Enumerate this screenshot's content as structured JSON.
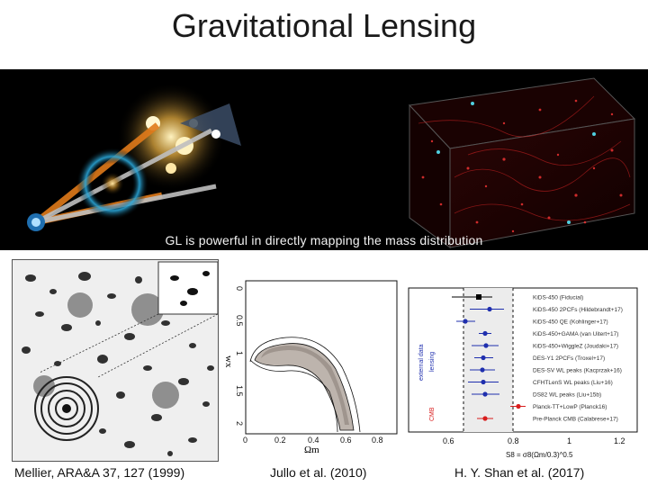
{
  "slide": {
    "title": "Gravitational Lensing",
    "banner_caption": "GL is powerful in directly mapping the mass distribution"
  },
  "panels": {
    "left_credit": "Mellier, ARA&A 37, 127 (1999)",
    "middle_credit": "Jullo et al. (2010)",
    "right_credit": "H. Y. Shan et al. (2017)"
  },
  "contour_plot": {
    "xlabel": "Ωm",
    "ylabel": "wx",
    "x_ticks": [
      "0",
      "0.2",
      "0.4",
      "0.6",
      "0.8"
    ],
    "y_ticks": [
      "0",
      "0.5",
      "1",
      "1.5",
      "2"
    ]
  },
  "whisker_plot": {
    "xlabel": "S8 = σ8(Ωm/0.3)^0.5",
    "x_ticks": [
      "0.6",
      "0.8",
      "1",
      "1.2"
    ],
    "group_labels": [
      "external data",
      "lensing",
      "CMB"
    ],
    "rows": [
      {
        "label": "KiDS-450 (Fiducial)",
        "color": "#000000"
      },
      {
        "label": "KiDS-450 2PCFs (Hildebrandt+17)",
        "color": "#1f2fae"
      },
      {
        "label": "KiDS-450 QE (Kohlinger+17)",
        "color": "#1f2fae"
      },
      {
        "label": "KiDS-450+GAMA (van Uitert+17)",
        "color": "#1f2fae"
      },
      {
        "label": "KiDS-450+WiggleZ (Joudaki+17)",
        "color": "#1f2fae"
      },
      {
        "label": "DES-Y1 2PCFs (Troxel+17)",
        "color": "#1f2fae"
      },
      {
        "label": "DES-SV WL peaks (Kacprzak+16)",
        "color": "#1f2fae"
      },
      {
        "label": "CFHTLenS WL peaks (Liu+16)",
        "color": "#1f2fae"
      },
      {
        "label": "DS82 WL peaks (Liu+15b)",
        "color": "#1f2fae"
      },
      {
        "label": "Planck-TT+LowP (Planck16)",
        "color": "#d81e1e"
      },
      {
        "label": "Pre-Planck CMB (Calabrese+17)",
        "color": "#d81e1e"
      }
    ]
  }
}
